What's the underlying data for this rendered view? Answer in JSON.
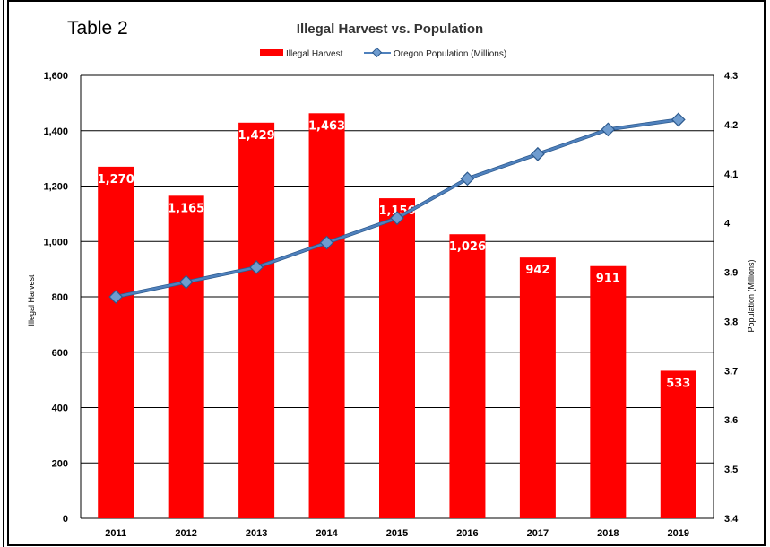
{
  "caption": "Table 2",
  "chart_data": {
    "type": "bar",
    "title": "Illegal Harvest vs. Population",
    "categories": [
      "2011",
      "2012",
      "2013",
      "2014",
      "2015",
      "2016",
      "2017",
      "2018",
      "2019"
    ],
    "series": [
      {
        "name": "Illegal Harvest",
        "type": "bar",
        "axis": "left",
        "color": "#ff0000",
        "values": [
          1270,
          1165,
          1429,
          1463,
          1156,
          1026,
          942,
          911,
          533
        ],
        "labels": [
          "1,270",
          "1,165",
          "1,429",
          "1,463",
          "1,156",
          "1,026",
          "942",
          "911",
          "533"
        ]
      },
      {
        "name": "Oregon Population (Millions)",
        "type": "line",
        "axis": "right",
        "color": "#4f81bd",
        "marker_color": "#6f9ccf",
        "values": [
          3.85,
          3.88,
          3.91,
          3.96,
          4.01,
          4.09,
          4.14,
          4.19,
          4.21
        ]
      }
    ],
    "ylabel": "Illegal Harvest",
    "ylabel_right": "Population (Millions)",
    "ylim": [
      0,
      1600
    ],
    "ylim_right": [
      3.4,
      4.3
    ],
    "yticks": [
      "0",
      "200",
      "400",
      "600",
      "800",
      "1,000",
      "1,200",
      "1,400",
      "1,600"
    ],
    "yticks_right": [
      "3.4",
      "3.5",
      "3.6",
      "3.7",
      "3.8",
      "3.9",
      "4",
      "4.1",
      "4.2",
      "4.3"
    ],
    "grid": true,
    "legend_position": "top-center"
  }
}
